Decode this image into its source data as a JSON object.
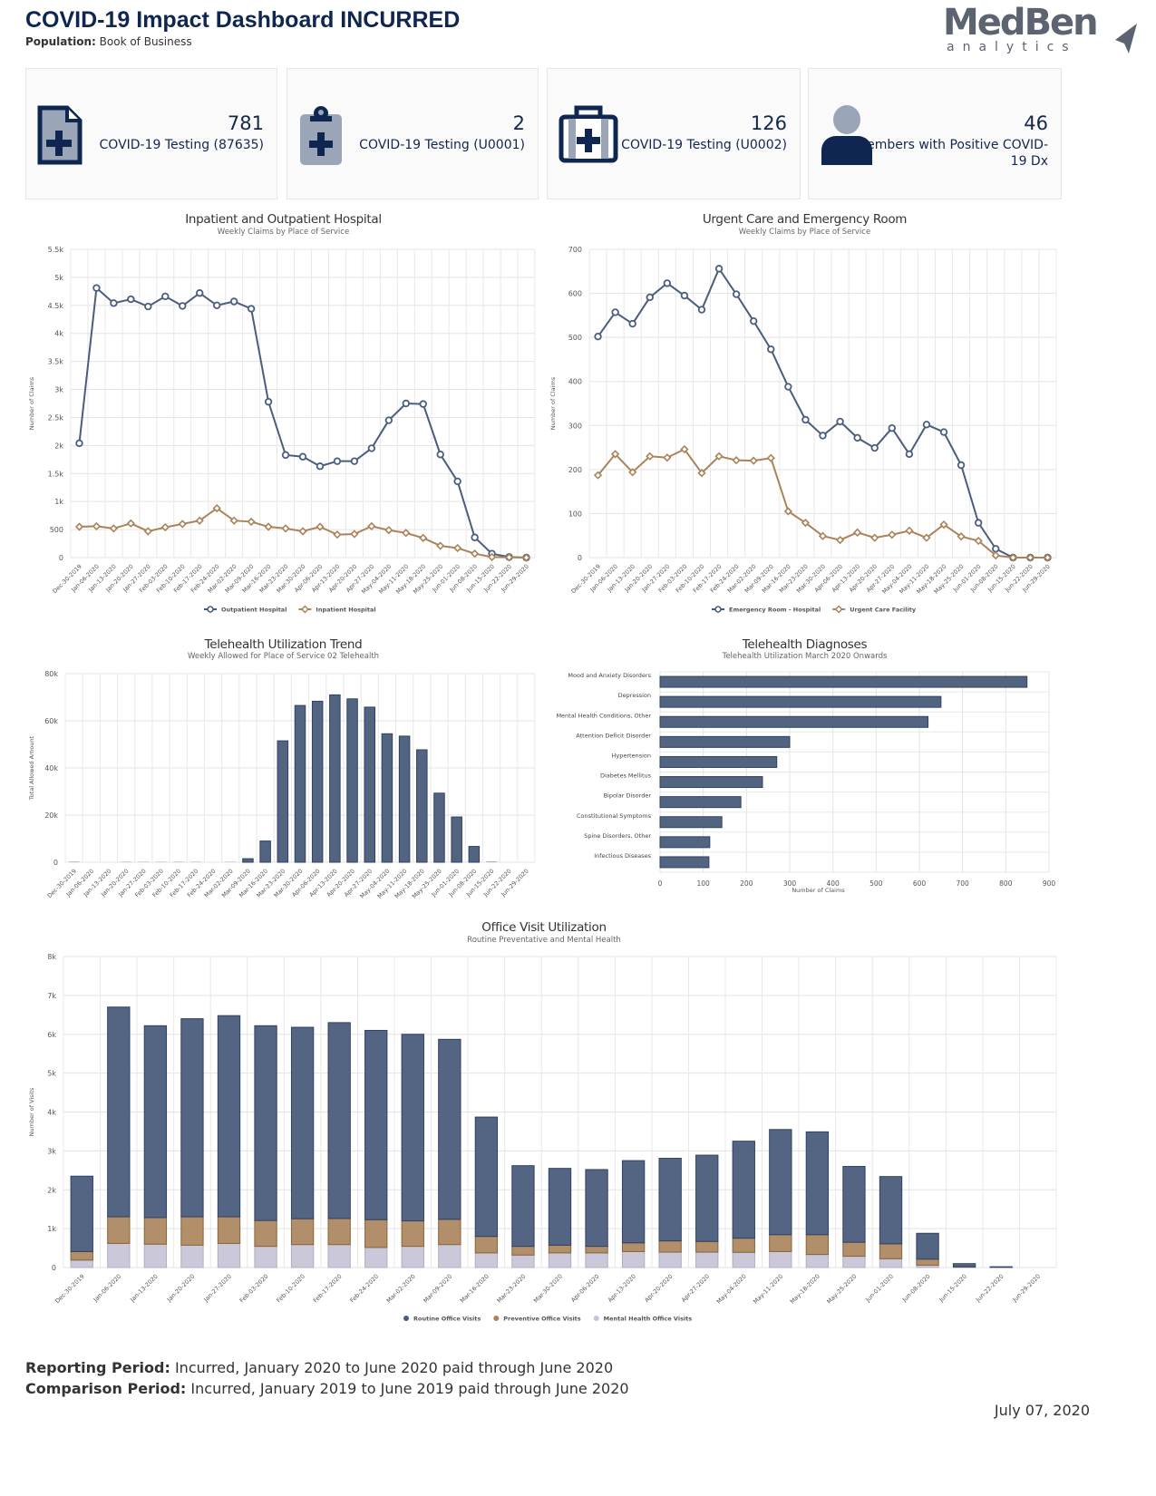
{
  "header": {
    "title": "COVID-19 Impact Dashboard INCURRED",
    "population_label": "Population:",
    "population_value": "Book of Business",
    "logo_text": "MedBen analytics"
  },
  "colors": {
    "navy": "#0f2650",
    "series_blue": "#4b5d7d",
    "series_tan": "#a9835a",
    "series_lavender": "#c4c2d5",
    "icon_gray": "#9aa5b8"
  },
  "cards": [
    {
      "value": "781",
      "label": "COVID-19 Testing (87635)",
      "icon": "medical-document-icon"
    },
    {
      "value": "2",
      "label": "COVID-19 Testing (U0001)",
      "icon": "clipboard-medical-icon"
    },
    {
      "value": "126",
      "label": "COVID-19 Testing (U0002)",
      "icon": "medical-kit-icon"
    },
    {
      "value": "46",
      "label": "Members with Positive COVID-19 Dx",
      "icon": "person-icon"
    }
  ],
  "footer": {
    "reporting_label": "Reporting Period:",
    "reporting_value": "Incurred, January 2020 to June 2020 paid through June 2020",
    "comparison_label": "Comparison Period:",
    "comparison_value": "Incurred, January 2019 to June 2019 paid through June 2020",
    "date": "July 07, 2020"
  },
  "chart_data": [
    {
      "type": "line",
      "title": "Inpatient and Outpatient Hospital",
      "subtitle": "Weekly Claims by Place of Service",
      "ylabel": "Number of Claims",
      "ylim": [
        0,
        5500
      ],
      "yticks": [
        0,
        500,
        1000,
        1500,
        2000,
        2500,
        3000,
        3500,
        4000,
        4500,
        5000,
        5500
      ],
      "yticklabels": [
        "0",
        "500",
        "1k",
        "1.5k",
        "2k",
        "2.5k",
        "3k",
        "3.5k",
        "4k",
        "4.5k",
        "5k",
        "5.5k"
      ],
      "grid": true,
      "legend": "bottom",
      "categories": [
        "Dec-30-2019",
        "Jan-06-2020",
        "Jan-13-2020",
        "Jan-20-2020",
        "Jan-27-2020",
        "Feb-03-2020",
        "Feb-10-2020",
        "Feb-17-2020",
        "Feb-24-2020",
        "Mar-02-2020",
        "Mar-09-2020",
        "Mar-16-2020",
        "Mar-23-2020",
        "Mar-30-2020",
        "Apr-06-2020",
        "Apr-13-2020",
        "Apr-20-2020",
        "Apr-27-2020",
        "May-04-2020",
        "May-11-2020",
        "May-18-2020",
        "May-25-2020",
        "Jun-01-2020",
        "Jun-08-2020",
        "Jun-15-2020",
        "Jun-22-2020",
        "Jun-29-2020"
      ],
      "series": [
        {
          "name": "Outpatient Hospital",
          "marker": "circle",
          "values": [
            2040,
            4810,
            4540,
            4610,
            4480,
            4660,
            4490,
            4720,
            4500,
            4570,
            4440,
            2780,
            1830,
            1800,
            1630,
            1720,
            1720,
            1950,
            2450,
            2750,
            2740,
            1840,
            1360,
            360,
            70,
            10,
            0
          ]
        },
        {
          "name": "Inpatient Hospital",
          "marker": "diamond",
          "values": [
            550,
            560,
            520,
            610,
            470,
            540,
            600,
            660,
            880,
            660,
            640,
            550,
            520,
            470,
            550,
            410,
            420,
            560,
            490,
            440,
            350,
            210,
            170,
            70,
            10,
            5,
            0
          ]
        }
      ]
    },
    {
      "type": "line",
      "title": "Urgent Care and Emergency Room",
      "subtitle": "Weekly Claims by Place of Service",
      "ylabel": "Number of Claims",
      "ylim": [
        0,
        700
      ],
      "yticks": [
        0,
        100,
        200,
        300,
        400,
        500,
        600,
        700
      ],
      "yticklabels": [
        "0",
        "100",
        "200",
        "300",
        "400",
        "500",
        "600",
        "700"
      ],
      "grid": true,
      "legend": "bottom",
      "categories": [
        "Dec-30-2019",
        "Jan-06-2020",
        "Jan-13-2020",
        "Jan-20-2020",
        "Jan-27-2020",
        "Feb-03-2020",
        "Feb-10-2020",
        "Feb-17-2020",
        "Feb-24-2020",
        "Mar-02-2020",
        "Mar-09-2020",
        "Mar-16-2020",
        "Mar-23-2020",
        "Mar-30-2020",
        "Apr-06-2020",
        "Apr-13-2020",
        "Apr-20-2020",
        "Apr-27-2020",
        "May-04-2020",
        "May-11-2020",
        "May-18-2020",
        "May-25-2020",
        "Jun-01-2020",
        "Jun-08-2020",
        "Jun-15-2020",
        "Jun-22-2020",
        "Jun-29-2020"
      ],
      "series": [
        {
          "name": "Emergency Room - Hospital",
          "marker": "circle",
          "values": [
            502,
            557,
            531,
            591,
            623,
            595,
            563,
            656,
            598,
            537,
            473,
            388,
            313,
            277,
            309,
            272,
            249,
            294,
            235,
            302,
            285,
            210,
            79,
            20,
            0,
            0,
            0
          ]
        },
        {
          "name": "Urgent Care Facility",
          "marker": "diamond",
          "values": [
            187,
            235,
            194,
            230,
            227,
            246,
            192,
            230,
            221,
            220,
            226,
            105,
            79,
            49,
            40,
            57,
            45,
            52,
            61,
            45,
            75,
            48,
            38,
            5,
            0,
            0,
            0
          ]
        }
      ]
    },
    {
      "type": "bar",
      "title": "Telehealth Utilization Trend",
      "subtitle": "Weekly Allowed for Place of Service 02 Telehealth",
      "ylabel": "Total Allowed Amount",
      "ylim": [
        0,
        80000
      ],
      "yticks": [
        0,
        20000,
        40000,
        60000,
        80000
      ],
      "yticklabels": [
        "0",
        "20k",
        "40k",
        "60k",
        "80k"
      ],
      "grid": true,
      "categories": [
        "Dec-30-2019",
        "Jan-06-2020",
        "Jan-13-2020",
        "Jan-20-2020",
        "Jan-27-2020",
        "Feb-03-2020",
        "Feb-10-2020",
        "Feb-17-2020",
        "Feb-24-2020",
        "Mar-02-2020",
        "Mar-09-2020",
        "Mar-16-2020",
        "Mar-23-2020",
        "Mar-30-2020",
        "Apr-06-2020",
        "Apr-13-2020",
        "Apr-20-2020",
        "Apr-27-2020",
        "May-04-2020",
        "May-11-2020",
        "May-18-2020",
        "May-25-2020",
        "Jun-01-2020",
        "Jun-08-2020",
        "Jun-15-2020",
        "Jun-22-2020",
        "Jun-29-2020"
      ],
      "values": [
        300,
        0,
        0,
        200,
        200,
        200,
        200,
        200,
        0,
        200,
        1500,
        9000,
        51500,
        66500,
        68300,
        71000,
        69300,
        65800,
        54500,
        53500,
        47700,
        29300,
        19200,
        6700,
        400,
        0,
        0
      ]
    },
    {
      "type": "bar",
      "orientation": "horizontal",
      "title": "Telehealth Diagnoses",
      "subtitle": "Telehealth Utilization March 2020 Onwards",
      "xlabel": "Number of Claims",
      "xlim": [
        0,
        900
      ],
      "xticks": [
        0,
        100,
        200,
        300,
        400,
        500,
        600,
        700,
        800,
        900
      ],
      "grid": true,
      "categories": [
        "Mood and Anxiety Disorders",
        "Depression",
        "Mental Health Conditions, Other",
        "Attention Deficit Disorder",
        "Hypertension",
        "Diabetes Mellitus",
        "Bipolar Disorder",
        "Constitutional Symptoms",
        "Spine Disorders, Other",
        "Infectious Diseases"
      ],
      "values": [
        849,
        650,
        620,
        300,
        270,
        237,
        187,
        143,
        115,
        113
      ]
    },
    {
      "type": "bar",
      "stacked": true,
      "title": "Office Visit Utilization",
      "subtitle": "Routine Preventative and Mental Health",
      "ylabel": "Number of Visits",
      "ylim": [
        0,
        8000
      ],
      "yticks": [
        0,
        1000,
        2000,
        3000,
        4000,
        5000,
        6000,
        7000,
        8000
      ],
      "yticklabels": [
        "0",
        "1k",
        "2k",
        "3k",
        "4k",
        "5k",
        "6k",
        "7k",
        "8k"
      ],
      "grid": true,
      "legend": "bottom",
      "categories": [
        "Dec-30-2019",
        "Jan-06-2020",
        "Jan-13-2020",
        "Jan-20-2020",
        "Jan-27-2020",
        "Feb-03-2020",
        "Feb-10-2020",
        "Feb-17-2020",
        "Feb-24-2020",
        "Mar-02-2020",
        "Mar-09-2020",
        "Mar-16-2020",
        "Mar-23-2020",
        "Mar-30-2020",
        "Apr-06-2020",
        "Apr-13-2020",
        "Apr-20-2020",
        "Apr-27-2020",
        "May-04-2020",
        "May-11-2020",
        "May-18-2020",
        "May-25-2020",
        "Jun-01-2020",
        "Jun-08-2020",
        "Jun-15-2020",
        "Jun-22-2020",
        "Jun-29-2020"
      ],
      "series": [
        {
          "name": "Routine Office Visits",
          "values": [
            1940,
            5395,
            4935,
            5095,
            5175,
            5010,
            4925,
            5040,
            4870,
            4800,
            4630,
            3070,
            2075,
            1975,
            1975,
            2115,
            2125,
            2220,
            2495,
            2705,
            2645,
            1950,
            1730,
            665,
            80,
            15,
            0
          ]
        },
        {
          "name": "Preventive Office Visits",
          "values": [
            220,
            685,
            685,
            730,
            685,
            665,
            665,
            670,
            715,
            655,
            650,
            425,
            225,
            200,
            170,
            225,
            290,
            275,
            365,
            435,
            510,
            360,
            385,
            155,
            10,
            0,
            0
          ]
        },
        {
          "name": "Mental Health Office Visits",
          "values": [
            190,
            620,
            600,
            575,
            620,
            545,
            590,
            590,
            515,
            545,
            590,
            375,
            320,
            375,
            375,
            410,
            395,
            395,
            390,
            410,
            335,
            290,
            225,
            60,
            10,
            5,
            0
          ]
        }
      ]
    }
  ]
}
